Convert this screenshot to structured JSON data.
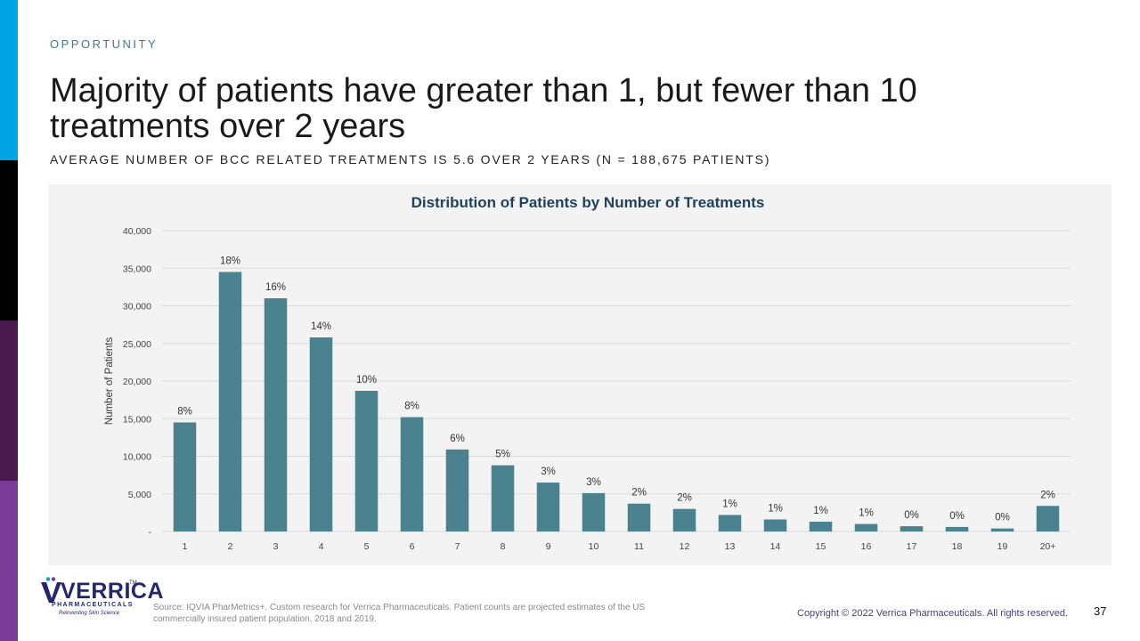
{
  "slide": {
    "eyebrow": "OPPORTUNITY",
    "title": "Majority of patients have greater than 1, but fewer than 10 treatments over 2 years",
    "subtitle": "AVERAGE NUMBER OF BCC RELATED TREATMENTS IS 5.6 OVER 2 YEARS (N = 188,675 PATIENTS)",
    "source": "Source: IQVIA PharMetrics+. Custom research for Verrica Pharmaceuticals.  Patient counts are projected estimates of the US commercially insured patient population, 2018 and 2019.",
    "copyright": "Copyright © 2022 Verrica Pharmaceuticals. All rights reserved.",
    "page_number": "37"
  },
  "logo": {
    "name": "VERRICA",
    "tm": "TM",
    "sub": "PHARMACEUTICALS",
    "tagline": "Reinventing Skin Science"
  },
  "colors": {
    "bar": "#4a8290",
    "stripe": [
      "#00a5e3",
      "#000000",
      "#4a1a4e",
      "#7a3a98"
    ],
    "title_chart": "#1f3f5b",
    "grid": "#d9d9d9"
  },
  "chart_data": {
    "type": "bar",
    "title": "Distribution of Patients by Number of Treatments",
    "xlabel": "",
    "ylabel": "Number of Patients",
    "ylim": [
      0,
      40000
    ],
    "yticks": [
      0,
      5000,
      10000,
      15000,
      20000,
      25000,
      30000,
      35000,
      40000
    ],
    "ytick_labels": [
      "-",
      "5,000",
      "10,000",
      "15,000",
      "20,000",
      "25,000",
      "30,000",
      "35,000",
      "40,000"
    ],
    "grid": true,
    "categories": [
      "1",
      "2",
      "3",
      "4",
      "5",
      "6",
      "7",
      "8",
      "9",
      "10",
      "11",
      "12",
      "13",
      "14",
      "15",
      "16",
      "17",
      "18",
      "19",
      "20+"
    ],
    "values": [
      14500,
      34500,
      31000,
      25800,
      18700,
      15200,
      10900,
      8800,
      6500,
      5100,
      3700,
      3000,
      2200,
      1600,
      1300,
      1000,
      700,
      600,
      400,
      3400
    ],
    "data_labels": [
      "8%",
      "18%",
      "16%",
      "14%",
      "10%",
      "8%",
      "6%",
      "5%",
      "3%",
      "3%",
      "2%",
      "2%",
      "1%",
      "1%",
      "1%",
      "1%",
      "0%",
      "0%",
      "0%",
      "2%"
    ]
  }
}
